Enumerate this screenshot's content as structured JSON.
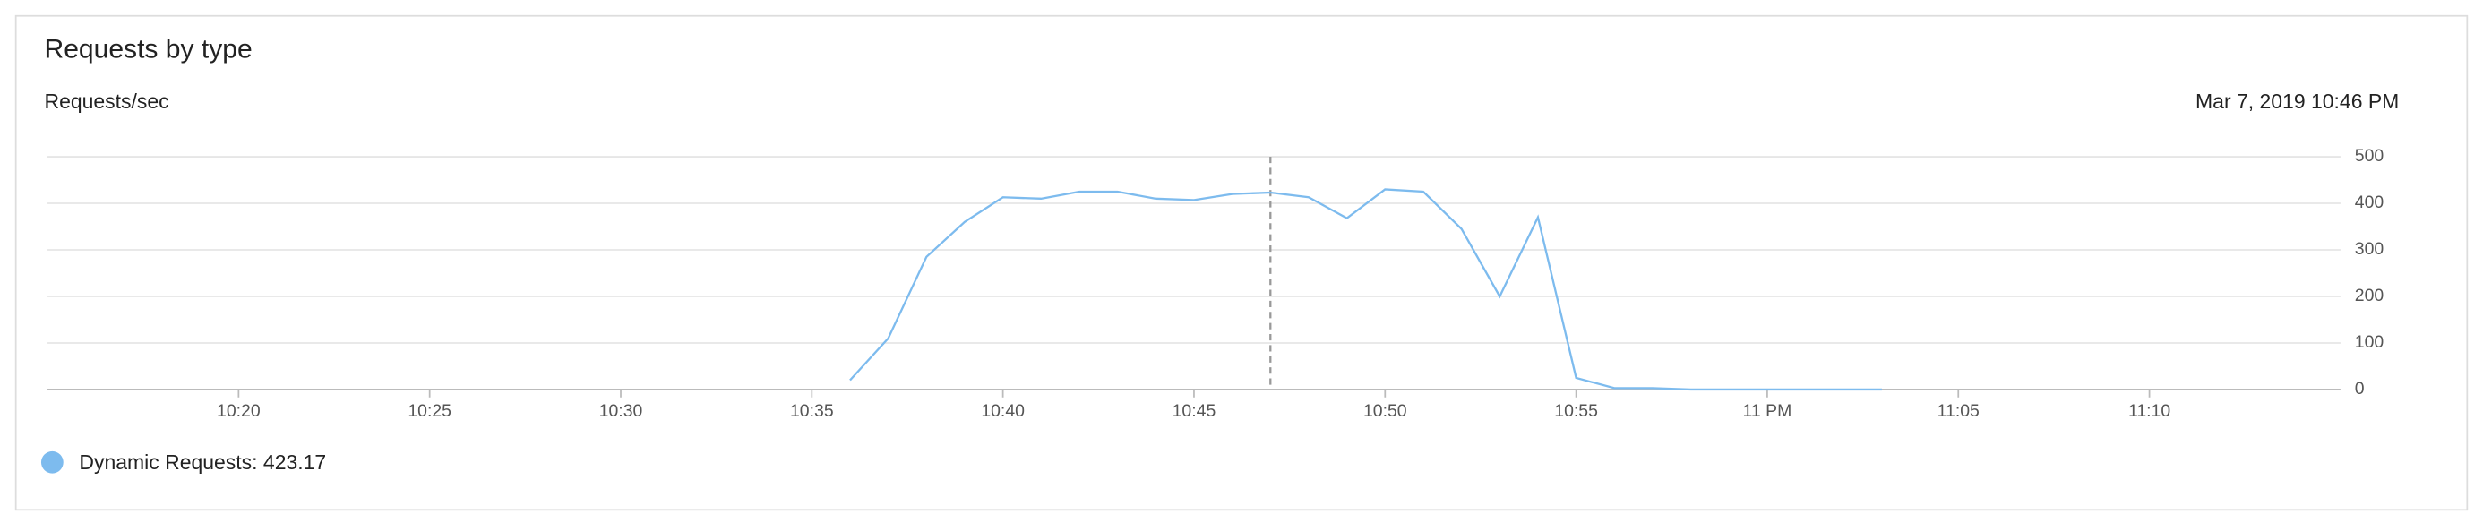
{
  "chart_data": {
    "type": "line",
    "title": "Requests by type",
    "y_label": "Requests/sec",
    "hover_time": "Mar 7, 2019 10:46 PM",
    "cursor_x": "10:47",
    "x": [
      "10:36",
      "10:37",
      "10:38",
      "10:39",
      "10:40",
      "10:41",
      "10:42",
      "10:43",
      "10:44",
      "10:45",
      "10:46",
      "10:47",
      "10:48",
      "10:49",
      "10:50",
      "10:51",
      "10:52",
      "10:53",
      "10:54",
      "10:55",
      "10:56",
      "10:57",
      "10:58",
      "10:59",
      "11:00",
      "11:01",
      "11:02",
      "11:03"
    ],
    "series": [
      {
        "name": "Dynamic Requests",
        "color": "#7dbbee",
        "hover_value": 423.17,
        "values": [
          20,
          110,
          285,
          360,
          413,
          410,
          425,
          425,
          410,
          407,
          420,
          423.17,
          413,
          368,
          430,
          425,
          345,
          200,
          370,
          25,
          3,
          3,
          0,
          0,
          0,
          0,
          0,
          0
        ]
      }
    ],
    "xlim": [
      "10:15",
      "11:15"
    ],
    "xticks": [
      "10:20",
      "10:25",
      "10:30",
      "10:35",
      "10:40",
      "10:45",
      "10:50",
      "10:55",
      {
        "value": "11:00",
        "label": "11 PM"
      },
      "11:05",
      "11:10"
    ],
    "ylim": [
      0,
      500
    ],
    "yticks": [
      0,
      100,
      200,
      300,
      400,
      500
    ],
    "grid": true
  }
}
